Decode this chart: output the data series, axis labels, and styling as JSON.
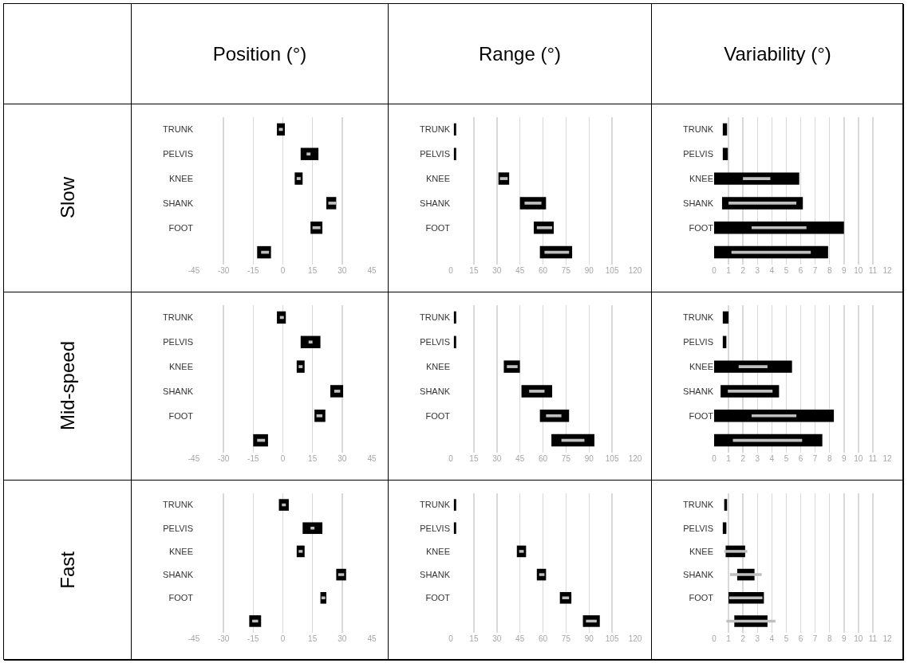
{
  "chart_data": [
    {
      "type": "bar",
      "title": "Position (°)",
      "ylabel": "Slow",
      "orientation": "horizontal",
      "categories": [
        "TRUNK",
        "PELVIS",
        "KNEE",
        "SHANK",
        "FOOT",
        null
      ],
      "xlim": [
        -45,
        45
      ],
      "xticks": [
        -45,
        -30,
        -15,
        0,
        15,
        30,
        45
      ],
      "grid": "x",
      "series": [
        {
          "type": "bar",
          "color": "#000000",
          "base": [
            -3,
            9,
            6,
            22,
            14,
            -13
          ],
          "values": [
            4,
            9,
            4,
            5,
            6,
            7
          ]
        },
        {
          "type": "bar",
          "color": "#bfbfbf",
          "base": [
            -2,
            12,
            7,
            23,
            15,
            -11
          ],
          "values": [
            2,
            2,
            2,
            4,
            4,
            4
          ]
        }
      ]
    },
    {
      "type": "bar",
      "title": "Range (°)",
      "orientation": "horizontal",
      "categories": [
        "TRUNK",
        "PELVIS",
        "KNEE",
        "SHANK",
        "FOOT",
        null
      ],
      "xlim": [
        0,
        120
      ],
      "xticks": [
        0,
        15,
        30,
        45,
        60,
        75,
        90,
        105,
        120
      ],
      "grid": "x",
      "series": [
        {
          "type": "bar",
          "color": "#000000",
          "base": [
            2,
            2,
            31,
            45,
            54,
            58
          ],
          "values": [
            1.5,
            1.5,
            7,
            17,
            13,
            21
          ]
        },
        {
          "type": "bar",
          "color": "#bfbfbf",
          "base": [
            null,
            null,
            32,
            48,
            56,
            61
          ],
          "values": [
            null,
            null,
            5,
            11,
            10,
            16
          ]
        }
      ]
    },
    {
      "type": "bar",
      "title": "Variability (°)",
      "orientation": "horizontal",
      "categories": [
        "TRUNK",
        "PELVIS",
        "KNEE",
        "SHANK",
        "FOOT",
        null
      ],
      "xlim": [
        0,
        12
      ],
      "xticks": [
        0,
        1,
        2,
        3,
        4,
        5,
        6,
        7,
        8,
        9,
        10,
        11,
        12
      ],
      "grid": "x",
      "series": [
        {
          "type": "bar",
          "color": "#000000",
          "base": [
            0.6,
            0.6,
            0,
            0.55,
            0,
            0
          ],
          "values": [
            0.3,
            0.35,
            5.9,
            5.6,
            9,
            7.9
          ]
        },
        {
          "type": "bar",
          "color": "#bfbfbf",
          "base": [
            null,
            null,
            2,
            1,
            2.6,
            1.2
          ],
          "values": [
            null,
            null,
            1.9,
            4.7,
            3.8,
            5.5
          ]
        }
      ]
    },
    {
      "type": "bar",
      "ylabel": "Mid-speed",
      "orientation": "horizontal",
      "categories": [
        "TRUNK",
        "PELVIS",
        "KNEE",
        "SHANK",
        "FOOT",
        null
      ],
      "xlim": [
        -45,
        45
      ],
      "xticks": [
        -45,
        -30,
        -15,
        0,
        15,
        30,
        45
      ],
      "grid": "x",
      "series": [
        {
          "type": "bar",
          "color": "#000000",
          "base": [
            -3,
            9,
            7,
            24,
            16,
            -15
          ],
          "values": [
            4.5,
            10,
            4,
            6.5,
            5.5,
            7.5
          ]
        },
        {
          "type": "bar",
          "color": "#bfbfbf",
          "base": [
            -1.5,
            13,
            8,
            26,
            17,
            -13
          ],
          "values": [
            2,
            2,
            2,
            3,
            3,
            4
          ]
        }
      ]
    },
    {
      "type": "bar",
      "orientation": "horizontal",
      "categories": [
        "TRUNK",
        "PELVIS",
        "KNEE",
        "SHANK",
        "FOOT",
        null
      ],
      "xlim": [
        0,
        120
      ],
      "xticks": [
        0,
        15,
        30,
        45,
        60,
        75,
        90,
        105,
        120
      ],
      "grid": "x",
      "series": [
        {
          "type": "bar",
          "color": "#000000",
          "base": [
            2,
            2,
            34.5,
            46,
            58,
            65.5
          ],
          "values": [
            1.5,
            1.5,
            10.5,
            20,
            19,
            28
          ]
        },
        {
          "type": "bar",
          "color": "#bfbfbf",
          "base": [
            null,
            null,
            36.5,
            51,
            62,
            72
          ],
          "values": [
            null,
            null,
            7,
            10,
            10,
            15
          ]
        }
      ]
    },
    {
      "type": "bar",
      "orientation": "horizontal",
      "categories": [
        "TRUNK",
        "PELVIS",
        "KNEE",
        "SHANK",
        "FOOT",
        null
      ],
      "xlim": [
        0,
        12
      ],
      "xticks": [
        0,
        1,
        2,
        3,
        4,
        5,
        6,
        7,
        8,
        9,
        10,
        11,
        12
      ],
      "grid": "x",
      "series": [
        {
          "type": "bar",
          "color": "#000000",
          "base": [
            0.6,
            0.6,
            0,
            0.45,
            0,
            0
          ],
          "values": [
            0.4,
            0.25,
            5.4,
            4.05,
            8.3,
            7.5
          ]
        },
        {
          "type": "bar",
          "color": "#bfbfbf",
          "base": [
            null,
            null,
            1.7,
            0.95,
            2.6,
            1.3
          ],
          "values": [
            null,
            null,
            2,
            3.1,
            3.1,
            4.8
          ]
        }
      ]
    },
    {
      "type": "bar",
      "ylabel": "Fast",
      "orientation": "horizontal",
      "categories": [
        "TRUNK",
        "PELVIS",
        "KNEE",
        "SHANK",
        "FOOT",
        null
      ],
      "xlim": [
        -45,
        45
      ],
      "xticks": [
        -45,
        -30,
        -15,
        0,
        15,
        30,
        45
      ],
      "grid": "x",
      "series": [
        {
          "type": "bar",
          "color": "#000000",
          "base": [
            -2,
            10,
            7,
            27,
            19,
            -17
          ],
          "values": [
            5,
            10,
            4,
            5,
            3,
            6
          ]
        },
        {
          "type": "bar",
          "color": "#bfbfbf",
          "base": [
            -0.5,
            14,
            8,
            28,
            19.5,
            -15.5
          ],
          "values": [
            2,
            2,
            2,
            3,
            2,
            3
          ]
        }
      ]
    },
    {
      "type": "bar",
      "orientation": "horizontal",
      "categories": [
        "TRUNK",
        "PELVIS",
        "KNEE",
        "SHANK",
        "FOOT",
        null
      ],
      "xlim": [
        0,
        120
      ],
      "xticks": [
        0,
        15,
        30,
        45,
        60,
        75,
        90,
        105,
        120
      ],
      "grid": "x",
      "series": [
        {
          "type": "bar",
          "color": "#000000",
          "base": [
            2,
            2,
            43,
            56,
            71,
            86
          ],
          "values": [
            1.5,
            1.5,
            6,
            6,
            7.5,
            11
          ]
        },
        {
          "type": "bar",
          "color": "#bfbfbf",
          "base": [
            null,
            null,
            44.5,
            57.5,
            72.5,
            88
          ],
          "values": [
            null,
            null,
            3,
            3.5,
            4.5,
            7
          ]
        }
      ]
    },
    {
      "type": "bar",
      "orientation": "horizontal",
      "categories": [
        "TRUNK",
        "PELVIS",
        "KNEE",
        "SHANK",
        "FOOT",
        null
      ],
      "xlim": [
        0,
        12
      ],
      "xticks": [
        0,
        1,
        2,
        3,
        4,
        5,
        6,
        7,
        8,
        9,
        10,
        11,
        12
      ],
      "grid": "x",
      "series": [
        {
          "type": "bar",
          "color": "#000000",
          "base": [
            0.7,
            0.6,
            0.8,
            1.6,
            1,
            1.4
          ],
          "values": [
            0.2,
            0.25,
            1.35,
            1.2,
            2.45,
            2.3
          ]
        },
        {
          "type": "bar",
          "color": "#bfbfbf",
          "base": [
            null,
            null,
            0.7,
            1.1,
            1.05,
            0.85
          ],
          "values": [
            null,
            null,
            1.6,
            2.2,
            2.3,
            3.4
          ]
        }
      ]
    }
  ]
}
